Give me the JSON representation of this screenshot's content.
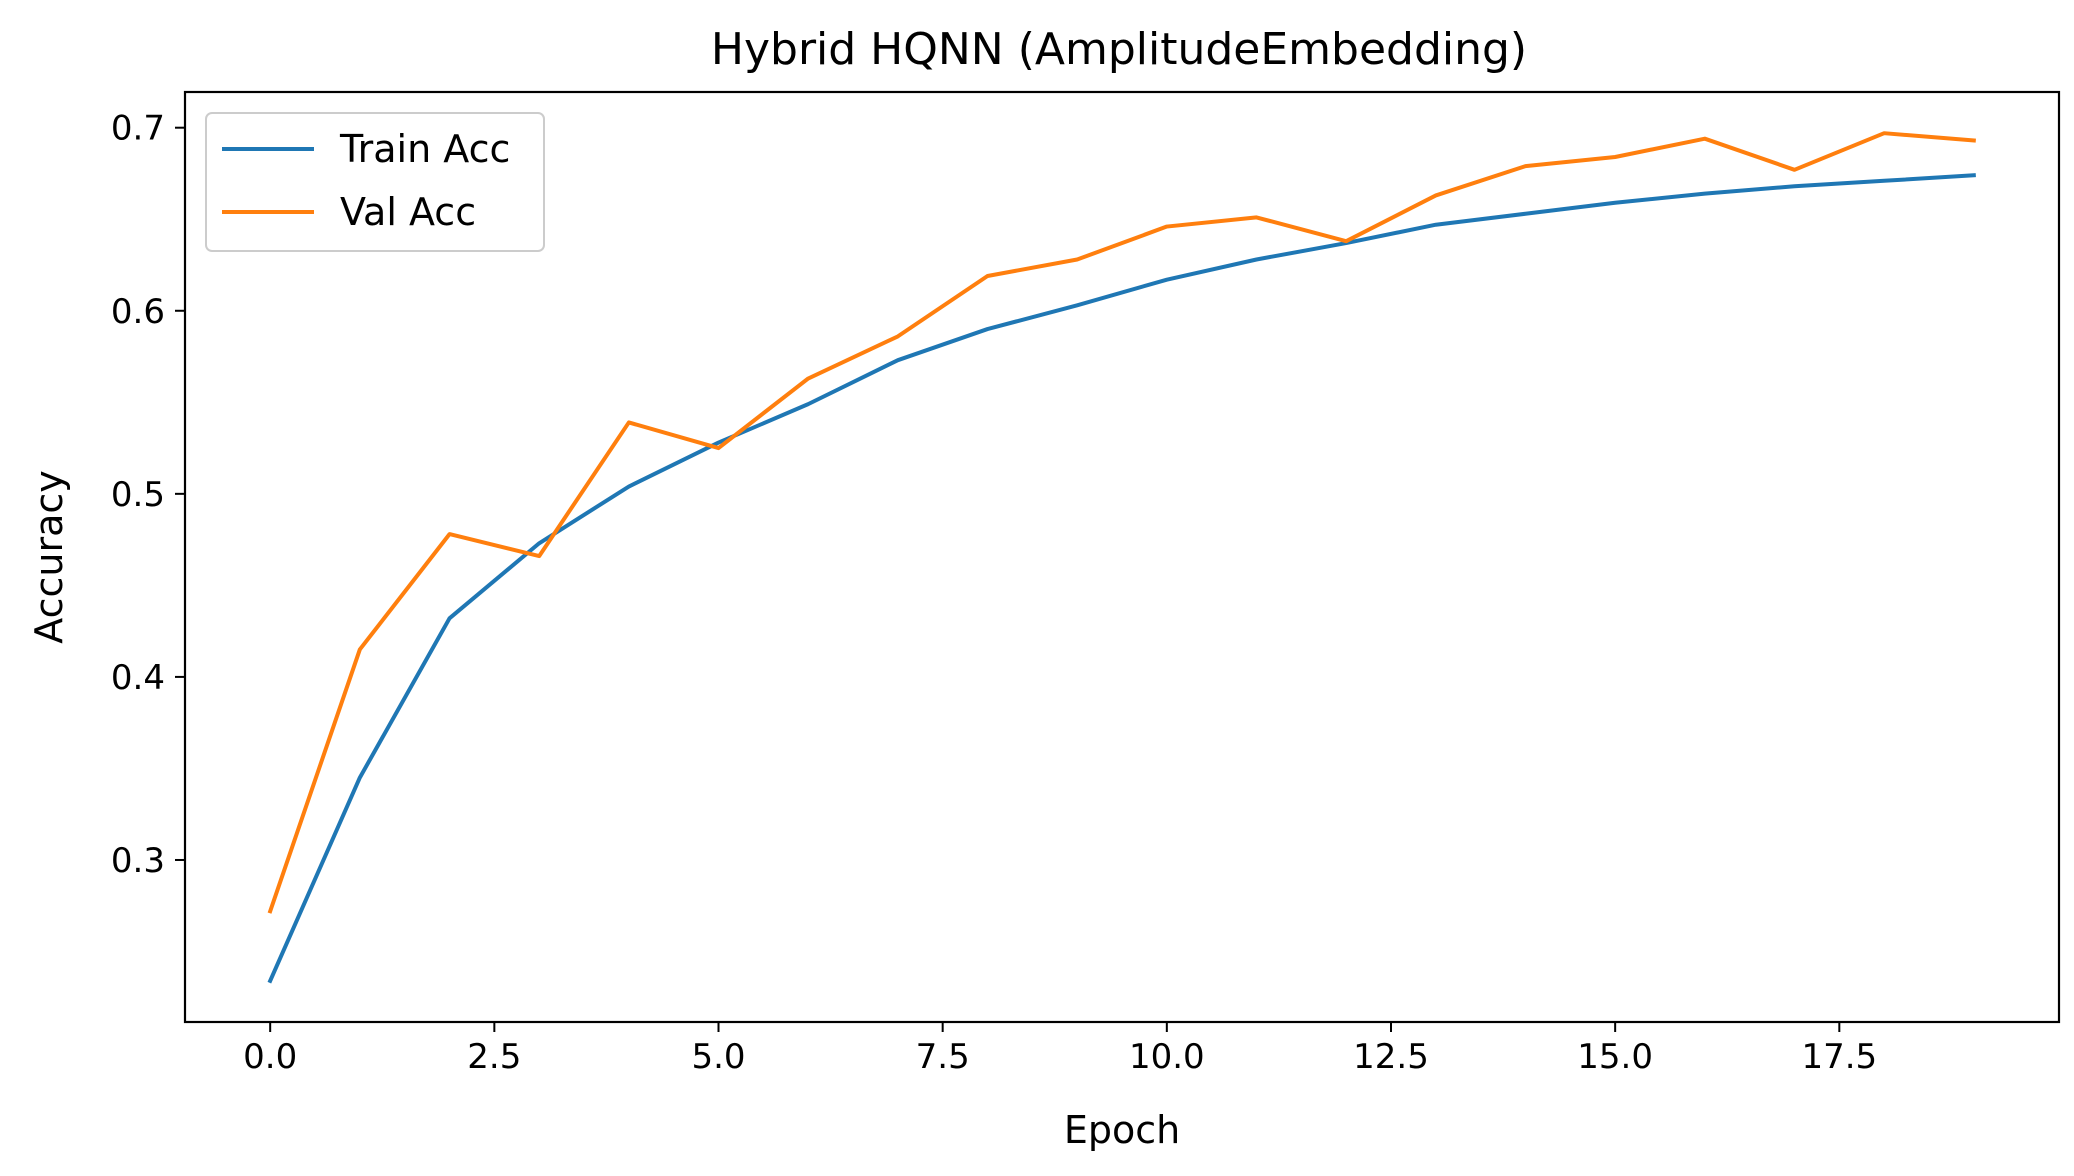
{
  "chart_data": {
    "type": "line",
    "title": "Hybrid HQNN (AmplitudeEmbedding)",
    "xlabel": "Epoch",
    "ylabel": "Accuracy",
    "xlim": [
      -0.95,
      19.95
    ],
    "ylim": [
      0.2115,
      0.7195
    ],
    "xticks": [
      0.0,
      2.5,
      5.0,
      7.5,
      10.0,
      12.5,
      15.0,
      17.5
    ],
    "xtick_labels": [
      "0.0",
      "2.5",
      "5.0",
      "7.5",
      "10.0",
      "12.5",
      "15.0",
      "17.5"
    ],
    "yticks": [
      0.3,
      0.4,
      0.5,
      0.6,
      0.7
    ],
    "ytick_labels": [
      "0.3",
      "0.4",
      "0.5",
      "0.6",
      "0.7"
    ],
    "grid": false,
    "legend_position": "top-left",
    "x": [
      0,
      1,
      2,
      3,
      4,
      5,
      6,
      7,
      8,
      9,
      10,
      11,
      12,
      13,
      14,
      15,
      16,
      17,
      18,
      19
    ],
    "series": [
      {
        "name": "Train Acc",
        "color": "#1f77b4",
        "values": [
          0.234,
          0.345,
          0.432,
          0.473,
          0.504,
          0.528,
          0.549,
          0.573,
          0.59,
          0.603,
          0.617,
          0.628,
          0.637,
          0.647,
          0.653,
          0.659,
          0.664,
          0.668,
          0.671,
          0.674
        ]
      },
      {
        "name": "Val Acc",
        "color": "#ff7f0e",
        "values": [
          0.272,
          0.415,
          0.478,
          0.466,
          0.539,
          0.525,
          0.563,
          0.586,
          0.619,
          0.628,
          0.646,
          0.651,
          0.638,
          0.663,
          0.679,
          0.684,
          0.694,
          0.677,
          0.697,
          0.693
        ]
      }
    ]
  }
}
